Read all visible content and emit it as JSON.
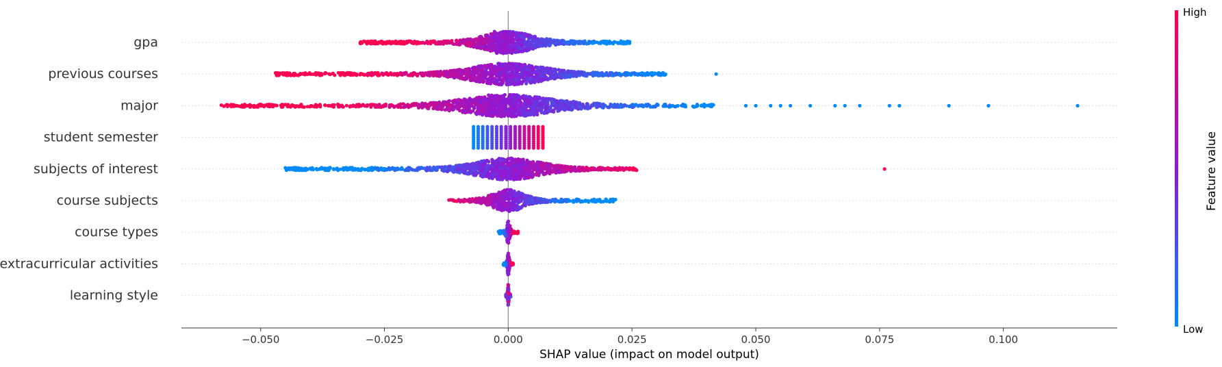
{
  "chart_data": {
    "type": "scatter",
    "subtype": "beeswarm",
    "xlabel": "SHAP value (impact on model output)",
    "xlim": [
      -0.066,
      0.123
    ],
    "xticks": [
      -0.05,
      -0.025,
      0.0,
      0.025,
      0.05,
      0.075,
      0.1
    ],
    "xtick_labels": [
      "−0.050",
      "−0.025",
      "0.000",
      "0.025",
      "0.050",
      "0.075",
      "0.100"
    ],
    "grid": "horizontal-dotted",
    "features": [
      {
        "name": "gpa",
        "min": -0.03,
        "max": 0.025,
        "center_cluster": [
          -0.003,
          0.001
        ],
        "low_side": "positive"
      },
      {
        "name": "previous courses",
        "min": -0.047,
        "max": 0.032,
        "extra_points": [
          0.042
        ],
        "low_side": "positive"
      },
      {
        "name": "major",
        "min": -0.058,
        "max": 0.042,
        "extra_points": [
          0.048,
          0.05,
          0.053,
          0.055,
          0.057,
          0.061,
          0.066,
          0.068,
          0.071,
          0.077,
          0.079,
          0.089,
          0.097,
          0.115
        ],
        "center_cluster": [
          -0.004,
          -0.001
        ],
        "low_side": "positive"
      },
      {
        "name": "student semester",
        "min": -0.007,
        "max": 0.007,
        "discrete": true,
        "low_side": "negative"
      },
      {
        "name": "subjects of interest",
        "min": -0.045,
        "max": 0.026,
        "extra_points": [
          0.076
        ],
        "low_side": "negative"
      },
      {
        "name": "course subjects",
        "min": -0.012,
        "max": 0.022,
        "low_side": "positive"
      },
      {
        "name": "course types",
        "min": -0.002,
        "max": 0.002,
        "low_side": "negative"
      },
      {
        "name": "extracurricular activities",
        "min": -0.001,
        "max": 0.001,
        "low_side": "negative"
      },
      {
        "name": "learning style",
        "min": -0.0005,
        "max": 0.0005,
        "low_side": "mixed"
      }
    ],
    "colorbar": {
      "label": "Feature value",
      "high_label": "High",
      "low_label": "Low",
      "low_color": "#008bfb",
      "mid_color": "#8c1ad8",
      "high_color": "#ff0052"
    }
  }
}
